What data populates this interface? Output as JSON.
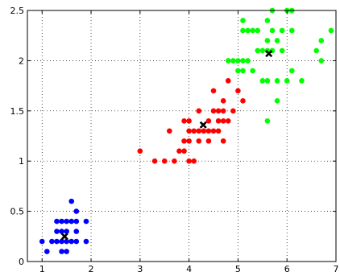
{
  "chart_data": {
    "type": "scatter",
    "title": "",
    "xlabel": "",
    "ylabel": "",
    "xlim": [
      0.7,
      7
    ],
    "ylim": [
      0,
      2.5
    ],
    "xticks": [
      1,
      2,
      3,
      4,
      5,
      6,
      7
    ],
    "yticks": [
      0,
      0.5,
      1,
      1.5,
      2,
      2.5
    ],
    "xtick_labels": [
      "1",
      "2",
      "3",
      "4",
      "5",
      "6",
      "7"
    ],
    "ytick_labels": [
      "0",
      "0.5",
      "1",
      "1.5",
      "2",
      "2.5"
    ],
    "grid": true,
    "legend": "none",
    "series": [
      {
        "color": "#0000ff",
        "marker": "dot",
        "points": [
          [
            1.0,
            0.2
          ],
          [
            1.1,
            0.1
          ],
          [
            1.2,
            0.2
          ],
          [
            1.3,
            0.2
          ],
          [
            1.3,
            0.3
          ],
          [
            1.3,
            0.4
          ],
          [
            1.4,
            0.1
          ],
          [
            1.4,
            0.2
          ],
          [
            1.4,
            0.3
          ],
          [
            1.4,
            0.4
          ],
          [
            1.5,
            0.1
          ],
          [
            1.5,
            0.2
          ],
          [
            1.5,
            0.3
          ],
          [
            1.5,
            0.4
          ],
          [
            1.6,
            0.2
          ],
          [
            1.6,
            0.4
          ],
          [
            1.6,
            0.6
          ],
          [
            1.7,
            0.2
          ],
          [
            1.7,
            0.3
          ],
          [
            1.7,
            0.4
          ],
          [
            1.7,
            0.5
          ],
          [
            1.9,
            0.2
          ],
          [
            1.9,
            0.4
          ]
        ]
      },
      {
        "color": "#ff0000",
        "marker": "dot",
        "points": [
          [
            3.0,
            1.1
          ],
          [
            3.3,
            1.0
          ],
          [
            3.5,
            1.0
          ],
          [
            3.6,
            1.3
          ],
          [
            3.7,
            1.0
          ],
          [
            3.8,
            1.1
          ],
          [
            3.9,
            1.1
          ],
          [
            3.9,
            1.2
          ],
          [
            3.9,
            1.4
          ],
          [
            4.0,
            1.0
          ],
          [
            4.0,
            1.2
          ],
          [
            4.0,
            1.3
          ],
          [
            4.1,
            1.0
          ],
          [
            4.1,
            1.3
          ],
          [
            4.2,
            1.2
          ],
          [
            4.2,
            1.3
          ],
          [
            4.2,
            1.5
          ],
          [
            4.3,
            1.3
          ],
          [
            4.4,
            1.2
          ],
          [
            4.4,
            1.3
          ],
          [
            4.4,
            1.4
          ],
          [
            4.5,
            1.3
          ],
          [
            4.5,
            1.5
          ],
          [
            4.5,
            1.7
          ],
          [
            4.6,
            1.3
          ],
          [
            4.6,
            1.4
          ],
          [
            4.6,
            1.5
          ],
          [
            4.7,
            1.2
          ],
          [
            4.7,
            1.4
          ],
          [
            4.7,
            1.5
          ],
          [
            4.7,
            1.6
          ],
          [
            4.8,
            1.4
          ],
          [
            4.8,
            1.8
          ],
          [
            4.9,
            1.5
          ],
          [
            5.0,
            1.7
          ],
          [
            5.1,
            1.6
          ],
          [
            4.0,
            1.4
          ]
        ]
      },
      {
        "color": "#00ff00",
        "marker": "dot",
        "points": [
          [
            4.8,
            2.0
          ],
          [
            4.9,
            2.0
          ],
          [
            5.0,
            1.9
          ],
          [
            5.0,
            2.0
          ],
          [
            5.1,
            1.9
          ],
          [
            5.1,
            2.0
          ],
          [
            5.1,
            2.3
          ],
          [
            5.1,
            2.4
          ],
          [
            5.2,
            2.0
          ],
          [
            5.2,
            2.3
          ],
          [
            5.3,
            1.9
          ],
          [
            5.3,
            2.3
          ],
          [
            5.4,
            2.1
          ],
          [
            5.4,
            2.3
          ],
          [
            5.5,
            1.8
          ],
          [
            5.5,
            2.1
          ],
          [
            5.6,
            1.8
          ],
          [
            5.6,
            2.1
          ],
          [
            5.6,
            2.2
          ],
          [
            5.6,
            2.4
          ],
          [
            5.7,
            2.1
          ],
          [
            5.7,
            2.3
          ],
          [
            5.7,
            2.5
          ],
          [
            5.8,
            1.6
          ],
          [
            5.8,
            1.8
          ],
          [
            5.8,
            2.2
          ],
          [
            5.9,
            2.1
          ],
          [
            5.9,
            2.3
          ],
          [
            6.0,
            1.8
          ],
          [
            6.0,
            2.5
          ],
          [
            6.1,
            1.9
          ],
          [
            6.1,
            2.3
          ],
          [
            6.1,
            2.5
          ],
          [
            6.3,
            1.8
          ],
          [
            6.6,
            2.1
          ],
          [
            6.7,
            2.0
          ],
          [
            6.7,
            2.2
          ],
          [
            6.9,
            2.3
          ],
          [
            5.6,
            1.4
          ]
        ]
      }
    ],
    "centroids": [
      {
        "x": 1.46,
        "y": 0.25,
        "color": "#000000",
        "marker": "x"
      },
      {
        "x": 4.29,
        "y": 1.36,
        "color": "#000000",
        "marker": "x"
      },
      {
        "x": 5.63,
        "y": 2.07,
        "color": "#000000",
        "marker": "x"
      }
    ]
  }
}
